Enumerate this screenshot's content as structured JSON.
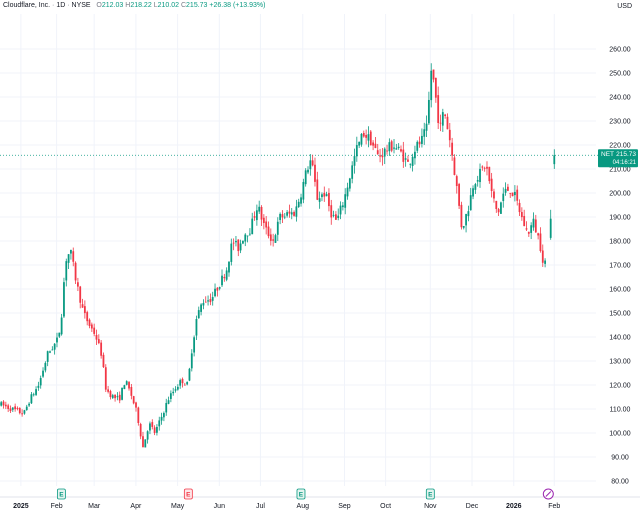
{
  "header": {
    "symbol": "Cloudflare, Inc.",
    "interval": "1D",
    "exchange": "NYSE",
    "open_label": "O",
    "open": "212.03",
    "high_label": "H",
    "high": "218.22",
    "low_label": "L",
    "low": "210.02",
    "close_label": "C",
    "close": "215.73",
    "change": "+26.38 (+13.93%)"
  },
  "currency": "USD",
  "price_tag": {
    "ticker": "NET",
    "price": "215.73",
    "countdown": "04:16:21"
  },
  "colors": {
    "up": "#089981",
    "down": "#f23645",
    "grid": "#f0f3fa",
    "axis_text": "#131722",
    "last_line": "#089981"
  },
  "chart_data": {
    "type": "candlestick",
    "ylim": [
      75,
      265
    ],
    "y_ticks": [
      "80.00",
      "90.00",
      "100.00",
      "110.00",
      "120.00",
      "130.00",
      "140.00",
      "150.00",
      "160.00",
      "170.00",
      "180.00",
      "190.00",
      "200.00",
      "210.00",
      "220.00",
      "230.00",
      "240.00",
      "250.00",
      "260.00"
    ],
    "x_ticks": [
      {
        "label": "2025",
        "bold": true,
        "t": 0.035
      },
      {
        "label": "Feb",
        "bold": false,
        "t": 0.095
      },
      {
        "label": "Mar",
        "bold": false,
        "t": 0.158
      },
      {
        "label": "Apr",
        "bold": false,
        "t": 0.228
      },
      {
        "label": "May",
        "bold": false,
        "t": 0.298
      },
      {
        "label": "Jun",
        "bold": false,
        "t": 0.368
      },
      {
        "label": "Jul",
        "bold": false,
        "t": 0.437
      },
      {
        "label": "Aug",
        "bold": false,
        "t": 0.508
      },
      {
        "label": "Sep",
        "bold": false,
        "t": 0.578
      },
      {
        "label": "Oct",
        "bold": false,
        "t": 0.647
      },
      {
        "label": "Nov",
        "bold": false,
        "t": 0.722
      },
      {
        "label": "Dec",
        "bold": false,
        "t": 0.792
      },
      {
        "label": "2026",
        "bold": true,
        "t": 0.862
      },
      {
        "label": "Feb",
        "bold": false,
        "t": 0.93
      }
    ],
    "events": [
      {
        "type": "E",
        "t": 0.103,
        "color": "#089981"
      },
      {
        "type": "E",
        "t": 0.316,
        "color": "#f23645"
      },
      {
        "type": "E",
        "t": 0.505,
        "color": "#089981"
      },
      {
        "type": "E",
        "t": 0.722,
        "color": "#089981"
      },
      {
        "type": "split",
        "t": 0.92,
        "color": "#9c27b0"
      }
    ],
    "last_price": 215.73,
    "anchors": [
      [
        0.0,
        112
      ],
      [
        0.02,
        110
      ],
      [
        0.04,
        108
      ],
      [
        0.05,
        114
      ],
      [
        0.065,
        120
      ],
      [
        0.08,
        133
      ],
      [
        0.095,
        138
      ],
      [
        0.102,
        145
      ],
      [
        0.11,
        172
      ],
      [
        0.118,
        176
      ],
      [
        0.128,
        163
      ],
      [
        0.14,
        150
      ],
      [
        0.15,
        145
      ],
      [
        0.16,
        141
      ],
      [
        0.17,
        133
      ],
      [
        0.178,
        118
      ],
      [
        0.19,
        115
      ],
      [
        0.2,
        114
      ],
      [
        0.21,
        122
      ],
      [
        0.22,
        116
      ],
      [
        0.23,
        108
      ],
      [
        0.24,
        94
      ],
      [
        0.25,
        104
      ],
      [
        0.26,
        100
      ],
      [
        0.27,
        106
      ],
      [
        0.282,
        114
      ],
      [
        0.295,
        119
      ],
      [
        0.305,
        122
      ],
      [
        0.315,
        120
      ],
      [
        0.322,
        135
      ],
      [
        0.33,
        148
      ],
      [
        0.34,
        155
      ],
      [
        0.355,
        156
      ],
      [
        0.37,
        163
      ],
      [
        0.38,
        168
      ],
      [
        0.39,
        180
      ],
      [
        0.4,
        177
      ],
      [
        0.41,
        183
      ],
      [
        0.42,
        185
      ],
      [
        0.432,
        195
      ],
      [
        0.445,
        185
      ],
      [
        0.458,
        180
      ],
      [
        0.47,
        190
      ],
      [
        0.483,
        191
      ],
      [
        0.495,
        192
      ],
      [
        0.505,
        200
      ],
      [
        0.515,
        210
      ],
      [
        0.522,
        214
      ],
      [
        0.532,
        198
      ],
      [
        0.545,
        200
      ],
      [
        0.555,
        192
      ],
      [
        0.565,
        188
      ],
      [
        0.578,
        198
      ],
      [
        0.588,
        208
      ],
      [
        0.598,
        218
      ],
      [
        0.61,
        225
      ],
      [
        0.622,
        222
      ],
      [
        0.635,
        215
      ],
      [
        0.648,
        218
      ],
      [
        0.66,
        220
      ],
      [
        0.672,
        217
      ],
      [
        0.685,
        212
      ],
      [
        0.695,
        218
      ],
      [
        0.708,
        222
      ],
      [
        0.718,
        228
      ],
      [
        0.722,
        253
      ],
      [
        0.728,
        246
      ],
      [
        0.738,
        226
      ],
      [
        0.745,
        235
      ],
      [
        0.755,
        222
      ],
      [
        0.765,
        205
      ],
      [
        0.775,
        185
      ],
      [
        0.785,
        193
      ],
      [
        0.795,
        205
      ],
      [
        0.805,
        208
      ],
      [
        0.815,
        212
      ],
      [
        0.825,
        200
      ],
      [
        0.835,
        191
      ],
      [
        0.845,
        200
      ],
      [
        0.855,
        202
      ],
      [
        0.865,
        198
      ],
      [
        0.875,
        190
      ],
      [
        0.885,
        183
      ],
      [
        0.895,
        188
      ],
      [
        0.905,
        180
      ],
      [
        0.912,
        171
      ],
      [
        0.918,
        172
      ]
    ],
    "tail_candles": [
      {
        "t": 0.924,
        "o": 181.3,
        "h": 193.0,
        "l": 180.5,
        "c": 189.3
      },
      {
        "t": 0.93,
        "o": 212.03,
        "h": 218.22,
        "l": 210.02,
        "c": 215.73
      }
    ]
  }
}
